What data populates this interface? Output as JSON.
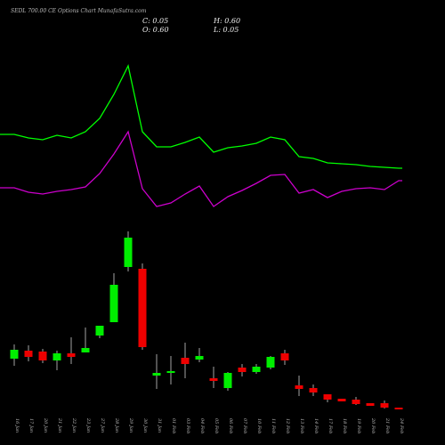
{
  "chart_data": [
    {
      "type": "line",
      "title": "SEDL 700.00 CE Options Chart MunafaSutra.com",
      "ohlc": [
        "C: 0.05",
        "H: 0.60",
        "O: 0.60",
        "L: 0.05"
      ],
      "ylim": [
        0,
        250
      ],
      "series": [
        {
          "color": "#00ff00",
          "values": [
            99,
            95,
            93,
            98,
            95,
            102,
            117,
            144,
            176,
            102,
            85,
            85,
            90,
            96,
            79,
            84,
            86,
            89,
            96,
            93,
            74,
            72,
            67,
            66,
            65,
            63,
            62,
            61
          ]
        },
        {
          "color": "#cc00cc",
          "values": [
            39,
            34,
            32,
            35,
            37,
            40,
            55,
            77,
            102,
            38,
            18,
            22,
            32,
            41,
            18,
            29,
            36,
            44,
            53,
            54,
            33,
            37,
            28,
            35,
            38,
            39,
            37,
            47
          ]
        }
      ]
    },
    {
      "type": "candlestick",
      "categories": [
        "16 Jan",
        "17 Jan",
        "20 Jan",
        "21 Jan",
        "22 Jan",
        "23 Jan",
        "27 Jan",
        "28 Jan",
        "29 Jan",
        "30 Jan",
        "31 Jan",
        "01 Feb",
        "03 Feb",
        "04 Feb",
        "05 Feb",
        "06 Feb",
        "07 Feb",
        "10 Feb",
        "11 Feb",
        "12 Feb",
        "13 Feb",
        "14 Feb",
        "17 Feb",
        "18 Feb",
        "19 Feb",
        "20 Feb",
        "21 Feb",
        "24 Feb"
      ],
      "open": [
        3.1,
        3.55,
        3.5,
        3.0,
        3.4,
        3.45,
        4.4,
        5.15,
        8.25,
        8.15,
        2.15,
        2.3,
        3.15,
        3.05,
        2.0,
        1.45,
        2.6,
        2.35,
        2.6,
        3.4,
        1.6,
        1.45,
        1.1,
        0.85,
        0.8,
        0.6,
        0.6,
        0.35
      ],
      "high": [
        3.9,
        3.85,
        3.65,
        3.55,
        4.3,
        4.85,
        4.95,
        7.9,
        10.25,
        8.45,
        3.35,
        3.25,
        4.0,
        3.7,
        2.65,
        2.35,
        2.8,
        2.8,
        3.25,
        3.6,
        2.15,
        1.65,
        1.1,
        0.85,
        0.95,
        0.6,
        0.75,
        0.35
      ],
      "low": [
        2.7,
        2.95,
        2.85,
        2.45,
        2.8,
        3.45,
        4.25,
        5.15,
        8.0,
        3.6,
        1.4,
        1.65,
        2.0,
        2.9,
        1.45,
        1.3,
        2.1,
        2.25,
        2.5,
        2.75,
        1.0,
        1.0,
        0.65,
        0.7,
        0.5,
        0.45,
        0.3,
        0.25
      ],
      "close": [
        3.6,
        3.2,
        3.0,
        3.4,
        3.2,
        3.7,
        4.95,
        7.25,
        9.9,
        3.75,
        2.3,
        2.4,
        2.8,
        3.25,
        1.85,
        2.3,
        2.35,
        2.65,
        3.2,
        3.0,
        1.4,
        1.2,
        0.8,
        0.7,
        0.55,
        0.45,
        0.35,
        0.25
      ],
      "up_color": "#00ee00",
      "down_color": "#ee0000",
      "ylim": [
        0,
        10.5
      ]
    }
  ]
}
